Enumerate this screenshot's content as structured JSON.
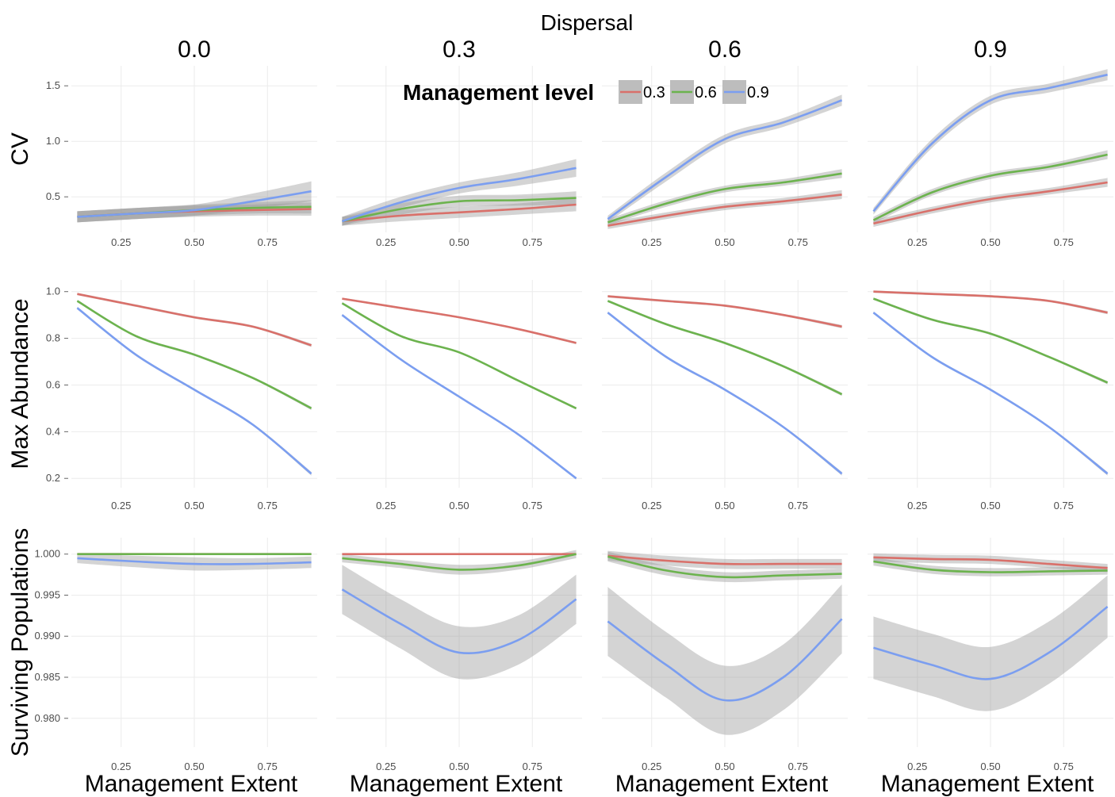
{
  "chart_data": {
    "type": "line",
    "title": "Dispersal",
    "xlabel": "Management Extent",
    "facet_columns": [
      "0.0",
      "0.3",
      "0.6",
      "0.9"
    ],
    "x_ticks": [
      "0.25",
      "0.50",
      "0.75"
    ],
    "x": [
      0.1,
      0.3,
      0.5,
      0.7,
      0.9
    ],
    "legend": {
      "title": "Management level",
      "position": "top",
      "entries": [
        {
          "label": "0.3",
          "color": "#d9706a"
        },
        {
          "label": "0.6",
          "color": "#6cb34e"
        },
        {
          "label": "0.9",
          "color": "#7b9ef0"
        }
      ]
    },
    "rows": [
      {
        "ylabel": "CV",
        "ylim": [
          0.18,
          1.68
        ],
        "y_ticks": [
          {
            "v": 0.5,
            "label": "0.5"
          },
          {
            "v": 1.0,
            "label": "1.0"
          },
          {
            "v": 1.5,
            "label": "1.5"
          }
        ],
        "panels": [
          {
            "series": [
              {
                "level": "0.3",
                "values": [
                  0.32,
                  0.35,
                  0.37,
                  0.38,
                  0.39
                ],
                "ci": [
                  0.05,
                  0.05,
                  0.05,
                  0.05,
                  0.06
                ]
              },
              {
                "level": "0.6",
                "values": [
                  0.32,
                  0.35,
                  0.38,
                  0.4,
                  0.41
                ],
                "ci": [
                  0.05,
                  0.05,
                  0.05,
                  0.05,
                  0.06
                ]
              },
              {
                "level": "0.9",
                "values": [
                  0.32,
                  0.35,
                  0.38,
                  0.46,
                  0.55
                ],
                "ci": [
                  0.05,
                  0.05,
                  0.05,
                  0.07,
                  0.09
                ]
              }
            ]
          },
          {
            "series": [
              {
                "level": "0.3",
                "values": [
                  0.28,
                  0.33,
                  0.36,
                  0.39,
                  0.43
                ],
                "ci": [
                  0.04,
                  0.05,
                  0.05,
                  0.05,
                  0.06
                ]
              },
              {
                "level": "0.6",
                "values": [
                  0.28,
                  0.39,
                  0.46,
                  0.47,
                  0.49
                ],
                "ci": [
                  0.04,
                  0.05,
                  0.05,
                  0.05,
                  0.06
                ]
              },
              {
                "level": "0.9",
                "values": [
                  0.28,
                  0.45,
                  0.58,
                  0.66,
                  0.76
                ],
                "ci": [
                  0.04,
                  0.05,
                  0.05,
                  0.06,
                  0.08
                ]
              }
            ]
          },
          {
            "series": [
              {
                "level": "0.3",
                "values": [
                  0.24,
                  0.33,
                  0.41,
                  0.46,
                  0.52
                ],
                "ci": [
                  0.03,
                  0.03,
                  0.03,
                  0.03,
                  0.04
                ]
              },
              {
                "level": "0.6",
                "values": [
                  0.27,
                  0.44,
                  0.57,
                  0.63,
                  0.71
                ],
                "ci": [
                  0.03,
                  0.03,
                  0.03,
                  0.03,
                  0.04
                ]
              },
              {
                "level": "0.9",
                "values": [
                  0.3,
                  0.68,
                  1.02,
                  1.17,
                  1.37
                ],
                "ci": [
                  0.03,
                  0.04,
                  0.04,
                  0.04,
                  0.05
                ]
              }
            ]
          },
          {
            "series": [
              {
                "level": "0.3",
                "values": [
                  0.26,
                  0.38,
                  0.48,
                  0.55,
                  0.63
                ],
                "ci": [
                  0.03,
                  0.03,
                  0.03,
                  0.03,
                  0.04
                ]
              },
              {
                "level": "0.6",
                "values": [
                  0.29,
                  0.54,
                  0.69,
                  0.77,
                  0.88
                ],
                "ci": [
                  0.03,
                  0.03,
                  0.03,
                  0.03,
                  0.04
                ]
              },
              {
                "level": "0.9",
                "values": [
                  0.37,
                  0.98,
                  1.37,
                  1.48,
                  1.6
                ],
                "ci": [
                  0.03,
                  0.04,
                  0.04,
                  0.04,
                  0.05
                ]
              }
            ]
          }
        ]
      },
      {
        "ylabel": "Max Abundance",
        "ylim": [
          0.16,
          1.05
        ],
        "y_ticks": [
          {
            "v": 0.2,
            "label": "0.2"
          },
          {
            "v": 0.4,
            "label": "0.4"
          },
          {
            "v": 0.6,
            "label": "0.6"
          },
          {
            "v": 0.8,
            "label": "0.8"
          },
          {
            "v": 1.0,
            "label": "1.0"
          }
        ],
        "panels": [
          {
            "series": [
              {
                "level": "0.3",
                "values": [
                  0.99,
                  0.94,
                  0.89,
                  0.85,
                  0.77
                ],
                "ci": [
                  0.005,
                  0.005,
                  0.005,
                  0.005,
                  0.007
                ]
              },
              {
                "level": "0.6",
                "values": [
                  0.96,
                  0.81,
                  0.73,
                  0.63,
                  0.5
                ],
                "ci": [
                  0.005,
                  0.005,
                  0.005,
                  0.005,
                  0.007
                ]
              },
              {
                "level": "0.9",
                "values": [
                  0.93,
                  0.73,
                  0.58,
                  0.43,
                  0.22
                ],
                "ci": [
                  0.005,
                  0.005,
                  0.005,
                  0.005,
                  0.008
                ]
              }
            ]
          },
          {
            "series": [
              {
                "level": "0.3",
                "values": [
                  0.97,
                  0.93,
                  0.89,
                  0.84,
                  0.78
                ],
                "ci": [
                  0.004,
                  0.004,
                  0.004,
                  0.004,
                  0.005
                ]
              },
              {
                "level": "0.6",
                "values": [
                  0.95,
                  0.81,
                  0.74,
                  0.62,
                  0.5
                ],
                "ci": [
                  0.004,
                  0.004,
                  0.004,
                  0.004,
                  0.005
                ]
              },
              {
                "level": "0.9",
                "values": [
                  0.9,
                  0.71,
                  0.55,
                  0.39,
                  0.2
                ],
                "ci": [
                  0.004,
                  0.004,
                  0.004,
                  0.004,
                  0.005
                ]
              }
            ]
          },
          {
            "series": [
              {
                "level": "0.3",
                "values": [
                  0.98,
                  0.96,
                  0.94,
                  0.9,
                  0.85
                ],
                "ci": [
                  0.005,
                  0.005,
                  0.005,
                  0.005,
                  0.007
                ]
              },
              {
                "level": "0.6",
                "values": [
                  0.96,
                  0.86,
                  0.78,
                  0.68,
                  0.56
                ],
                "ci": [
                  0.005,
                  0.005,
                  0.005,
                  0.005,
                  0.007
                ]
              },
              {
                "level": "0.9",
                "values": [
                  0.91,
                  0.72,
                  0.58,
                  0.42,
                  0.22
                ],
                "ci": [
                  0.005,
                  0.005,
                  0.005,
                  0.005,
                  0.008
                ]
              }
            ]
          },
          {
            "series": [
              {
                "level": "0.3",
                "values": [
                  1.0,
                  0.99,
                  0.98,
                  0.96,
                  0.91
                ],
                "ci": [
                  0.005,
                  0.005,
                  0.005,
                  0.005,
                  0.007
                ]
              },
              {
                "level": "0.6",
                "values": [
                  0.97,
                  0.88,
                  0.82,
                  0.72,
                  0.61
                ],
                "ci": [
                  0.005,
                  0.005,
                  0.005,
                  0.005,
                  0.007
                ]
              },
              {
                "level": "0.9",
                "values": [
                  0.91,
                  0.72,
                  0.58,
                  0.42,
                  0.22
                ],
                "ci": [
                  0.005,
                  0.005,
                  0.005,
                  0.005,
                  0.008
                ]
              }
            ]
          }
        ]
      },
      {
        "ylabel": "Surviving Populations",
        "ylim": [
          0.9765,
          1.002
        ],
        "y_ticks": [
          {
            "v": 0.98,
            "label": "0.980"
          },
          {
            "v": 0.985,
            "label": "0.985"
          },
          {
            "v": 0.99,
            "label": "0.990"
          },
          {
            "v": 0.995,
            "label": "0.995"
          },
          {
            "v": 1.0,
            "label": "1.000"
          }
        ],
        "panels": [
          {
            "series": [
              {
                "level": "0.3",
                "values": [
                  1.0,
                  1.0,
                  1.0,
                  1.0,
                  1.0
                ],
                "ci": [
                  0,
                  0,
                  0,
                  0,
                  0
                ]
              },
              {
                "level": "0.6",
                "values": [
                  1.0,
                  1.0,
                  1.0,
                  1.0,
                  1.0
                ],
                "ci": [
                  0,
                  0,
                  0,
                  0,
                  0
                ]
              },
              {
                "level": "0.9",
                "values": [
                  0.9995,
                  0.9991,
                  0.9988,
                  0.9988,
                  0.999
                ],
                "ci": [
                  0.0006,
                  0.0007,
                  0.0008,
                  0.0007,
                  0.0007
                ]
              }
            ]
          },
          {
            "series": [
              {
                "level": "0.3",
                "values": [
                  1.0,
                  1.0,
                  1.0,
                  1.0,
                  1.0
                ],
                "ci": [
                  0,
                  0,
                  0,
                  0,
                  0
                ]
              },
              {
                "level": "0.6",
                "values": [
                  0.9995,
                  0.9988,
                  0.9981,
                  0.9986,
                  1.0
                ],
                "ci": [
                  0.0005,
                  0.0005,
                  0.0006,
                  0.0005,
                  0.0005
                ]
              },
              {
                "level": "0.9",
                "values": [
                  0.9957,
                  0.9915,
                  0.988,
                  0.9895,
                  0.9945
                ],
                "ci": [
                  0.003,
                  0.003,
                  0.0032,
                  0.003,
                  0.003
                ]
              }
            ]
          },
          {
            "series": [
              {
                "level": "0.3",
                "values": [
                  0.9998,
                  0.9992,
                  0.9988,
                  0.9988,
                  0.9988
                ],
                "ci": [
                  0.0006,
                  0.0006,
                  0.0006,
                  0.0006,
                  0.0006
                ]
              },
              {
                "level": "0.6",
                "values": [
                  0.9997,
                  0.998,
                  0.9972,
                  0.9974,
                  0.9976
                ],
                "ci": [
                  0.0006,
                  0.0006,
                  0.0006,
                  0.0006,
                  0.0006
                ]
              },
              {
                "level": "0.9",
                "values": [
                  0.9918,
                  0.9865,
                  0.9822,
                  0.985,
                  0.9921
                ],
                "ci": [
                  0.0042,
                  0.004,
                  0.0042,
                  0.004,
                  0.0042
                ]
              }
            ]
          },
          {
            "series": [
              {
                "level": "0.3",
                "values": [
                  0.9996,
                  0.9994,
                  0.9993,
                  0.9988,
                  0.9983
                ],
                "ci": [
                  0.0005,
                  0.0005,
                  0.0005,
                  0.0005,
                  0.0005
                ]
              },
              {
                "level": "0.6",
                "values": [
                  0.9991,
                  0.9981,
                  0.9978,
                  0.9979,
                  0.998
                ],
                "ci": [
                  0.0005,
                  0.0005,
                  0.0005,
                  0.0005,
                  0.0005
                ]
              },
              {
                "level": "0.9",
                "values": [
                  0.9886,
                  0.9865,
                  0.9848,
                  0.988,
                  0.9936
                ],
                "ci": [
                  0.0038,
                  0.0038,
                  0.0039,
                  0.0038,
                  0.0038
                ]
              }
            ]
          }
        ]
      }
    ]
  }
}
